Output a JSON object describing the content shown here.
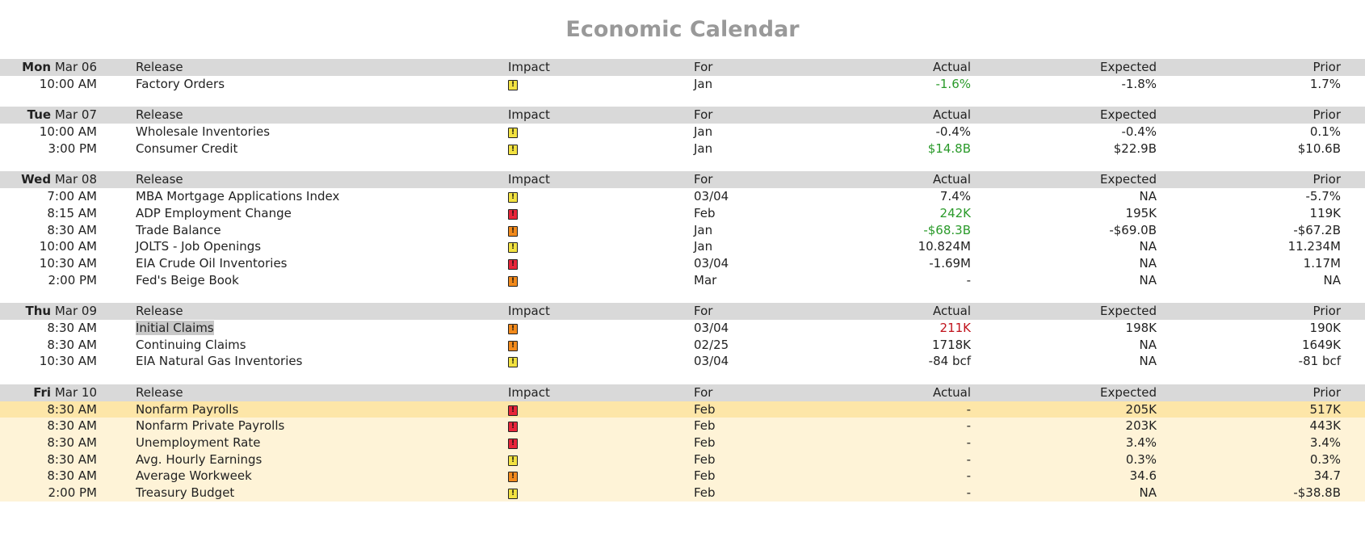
{
  "title": "Economic Calendar",
  "colors": {
    "header_bg": "#d9d9d9",
    "highlight_light": "#fef3d7",
    "highlight_strong": "#fde6a8",
    "positive": "#2a9a2a",
    "negative": "#c0121c",
    "impact_low": "#f2e241",
    "impact_medium": "#f28a1c",
    "impact_high": "#e8253a"
  },
  "columns": {
    "release": "Release",
    "impact": "Impact",
    "for": "For",
    "actual": "Actual",
    "expected": "Expected",
    "prior": "Prior"
  },
  "days": [
    {
      "weekday": "Mon",
      "date": "Mar 06",
      "rows": [
        {
          "time": "10:00 AM",
          "release": "Factory Orders",
          "impact": "low",
          "for": "Jan",
          "actual": "-1.6%",
          "actual_tone": "green",
          "expected": "-1.8%",
          "prior": "1.7%"
        }
      ]
    },
    {
      "weekday": "Tue",
      "date": "Mar 07",
      "rows": [
        {
          "time": "10:00 AM",
          "release": "Wholesale Inventories",
          "impact": "low",
          "for": "Jan",
          "actual": "-0.4%",
          "actual_tone": "default",
          "expected": "-0.4%",
          "prior": "0.1%"
        },
        {
          "time": "3:00 PM",
          "release": "Consumer Credit",
          "impact": "low",
          "for": "Jan",
          "actual": "$14.8B",
          "actual_tone": "green",
          "expected": "$22.9B",
          "prior": "$10.6B"
        }
      ]
    },
    {
      "weekday": "Wed",
      "date": "Mar 08",
      "rows": [
        {
          "time": "7:00 AM",
          "release": "MBA Mortgage Applications Index",
          "impact": "low",
          "for": "03/04",
          "actual": "7.4%",
          "actual_tone": "default",
          "expected": "NA",
          "prior": "-5.7%"
        },
        {
          "time": "8:15 AM",
          "release": "ADP Employment Change",
          "impact": "high",
          "for": "Feb",
          "actual": "242K",
          "actual_tone": "green",
          "expected": "195K",
          "prior": "119K"
        },
        {
          "time": "8:30 AM",
          "release": "Trade Balance",
          "impact": "medium",
          "for": "Jan",
          "actual": "-$68.3B",
          "actual_tone": "green",
          "expected": "-$69.0B",
          "prior": "-$67.2B"
        },
        {
          "time": "10:00 AM",
          "release": "JOLTS - Job Openings",
          "impact": "low",
          "for": "Jan",
          "actual": "10.824M",
          "actual_tone": "default",
          "expected": "NA",
          "prior": "11.234M"
        },
        {
          "time": "10:30 AM",
          "release": "EIA Crude Oil Inventories",
          "impact": "high",
          "for": "03/04",
          "actual": "-1.69M",
          "actual_tone": "default",
          "expected": "NA",
          "prior": "1.17M"
        },
        {
          "time": "2:00 PM",
          "release": "Fed's Beige Book",
          "impact": "medium",
          "for": "Mar",
          "actual": "-",
          "actual_tone": "default",
          "expected": "NA",
          "prior": "NA"
        }
      ]
    },
    {
      "weekday": "Thu",
      "date": "Mar 09",
      "rows": [
        {
          "time": "8:30 AM",
          "release": "Initial Claims",
          "impact": "medium",
          "for": "03/04",
          "actual": "211K",
          "actual_tone": "red",
          "expected": "198K",
          "prior": "190K",
          "selected": true
        },
        {
          "time": "8:30 AM",
          "release": "Continuing Claims",
          "impact": "medium",
          "for": "02/25",
          "actual": "1718K",
          "actual_tone": "default",
          "expected": "NA",
          "prior": "1649K"
        },
        {
          "time": "10:30 AM",
          "release": "EIA Natural Gas Inventories",
          "impact": "low",
          "for": "03/04",
          "actual": "-84 bcf",
          "actual_tone": "default",
          "expected": "NA",
          "prior": "-81 bcf"
        }
      ]
    },
    {
      "weekday": "Fri",
      "date": "Mar 10",
      "rows": [
        {
          "time": "8:30 AM",
          "release": "Nonfarm Payrolls",
          "impact": "high",
          "for": "Feb",
          "actual": "-",
          "actual_tone": "default",
          "expected": "205K",
          "prior": "517K",
          "highlight": "strong"
        },
        {
          "time": "8:30 AM",
          "release": "Nonfarm Private Payrolls",
          "impact": "high",
          "for": "Feb",
          "actual": "-",
          "actual_tone": "default",
          "expected": "203K",
          "prior": "443K",
          "highlight": "light"
        },
        {
          "time": "8:30 AM",
          "release": "Unemployment Rate",
          "impact": "high",
          "for": "Feb",
          "actual": "-",
          "actual_tone": "default",
          "expected": "3.4%",
          "prior": "3.4%",
          "highlight": "light"
        },
        {
          "time": "8:30 AM",
          "release": "Avg. Hourly Earnings",
          "impact": "low",
          "for": "Feb",
          "actual": "-",
          "actual_tone": "default",
          "expected": "0.3%",
          "prior": "0.3%",
          "highlight": "light"
        },
        {
          "time": "8:30 AM",
          "release": "Average Workweek",
          "impact": "medium",
          "for": "Feb",
          "actual": "-",
          "actual_tone": "default",
          "expected": "34.6",
          "prior": "34.7",
          "highlight": "light"
        },
        {
          "time": "2:00 PM",
          "release": "Treasury Budget",
          "impact": "low",
          "for": "Feb",
          "actual": "-",
          "actual_tone": "default",
          "expected": "NA",
          "prior": "-$38.8B",
          "highlight": "light"
        }
      ]
    }
  ]
}
